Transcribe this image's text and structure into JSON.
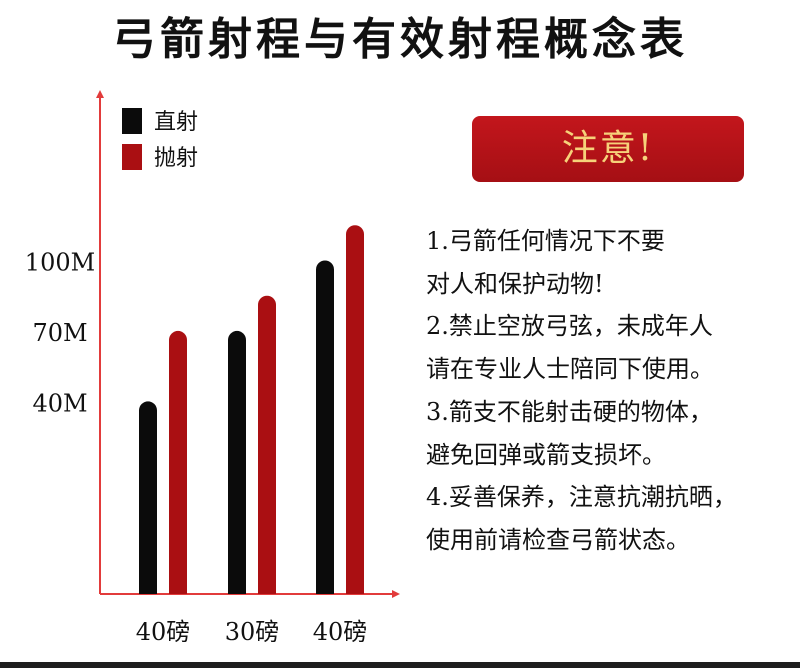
{
  "title": "弓箭射程与有效射程概念表",
  "notice": {
    "label": "注意!",
    "lines": [
      "1.弓箭任何情况下不要",
      "对人和保护动物!",
      "2.禁止空放弓弦，未成年人",
      "请在专业人士陪同下使用。",
      "3.箭支不能射击硬的物体，",
      "避免回弹或箭支损坏。",
      "4.妥善保养，注意抗潮抗晒，",
      "使用前请检查弓箭状态。"
    ]
  },
  "colors": {
    "direct": "#0b0b0b",
    "lob": "#aa0f12",
    "axis": "#e23b3b",
    "badge": "#b3121a",
    "badge_text": "#f6d27a"
  },
  "chart_data": {
    "type": "bar",
    "categories": [
      "40磅",
      "30磅",
      "40磅"
    ],
    "series": [
      {
        "name": "直射",
        "values": [
          40,
          70,
          100
        ]
      },
      {
        "name": "抛射",
        "values": [
          70,
          85,
          115
        ]
      }
    ],
    "yticks": [
      {
        "value": 40,
        "label": "40M"
      },
      {
        "value": 70,
        "label": "70M"
      },
      {
        "value": 100,
        "label": "100M"
      }
    ],
    "ylim": [
      -42,
      130
    ],
    "legend_position": "top-left",
    "grid": false
  }
}
